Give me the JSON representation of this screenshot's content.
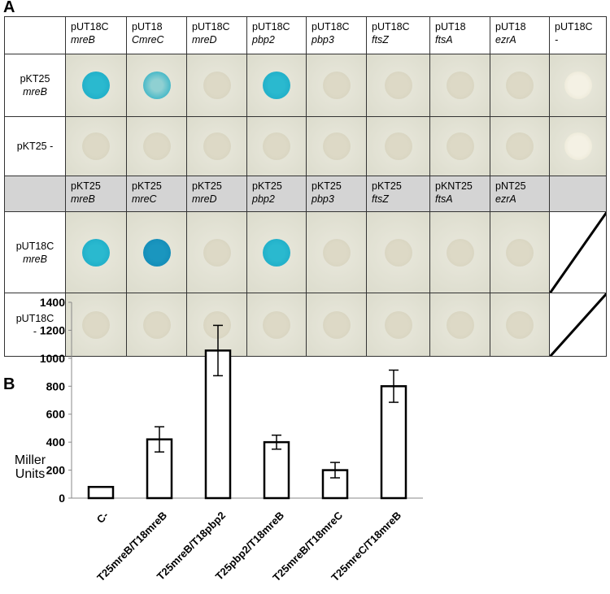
{
  "panel_a": {
    "letter": "A",
    "header_top": [
      {
        "line1": "pUT18C",
        "line2": "mreB"
      },
      {
        "line1": "pUT18",
        "line2": "CmreC"
      },
      {
        "line1": "pUT18C",
        "line2": "mreD"
      },
      {
        "line1": "pUT18C",
        "line2": "pbp2"
      },
      {
        "line1": "pUT18C",
        "line2": "pbp3"
      },
      {
        "line1": "pUT18C",
        "line2": "ftsZ"
      },
      {
        "line1": "pUT18",
        "line2": "ftsA"
      },
      {
        "line1": "pUT18",
        "line2": "ezrA"
      },
      {
        "line1": "pUT18C",
        "line2": "-"
      }
    ],
    "header_bottom": [
      {
        "line1": "pKT25",
        "line2": "mreB"
      },
      {
        "line1": "pKT25",
        "line2": "mreC"
      },
      {
        "line1": "pKT25",
        "line2": "mreD"
      },
      {
        "line1": "pKT25",
        "line2": "pbp2"
      },
      {
        "line1": "pKT25",
        "line2": "pbp3"
      },
      {
        "line1": "pKT25",
        "line2": "ftsZ"
      },
      {
        "line1": "pKNT25",
        "line2": "ftsA"
      },
      {
        "line1": "pNT25",
        "line2": "ezrA"
      }
    ],
    "row_labels": [
      {
        "line1": "pKT25",
        "line2": "mreB"
      },
      {
        "line1": "pKT25 -"
      },
      {
        "line1": "pUT18C",
        "line2": "mreB"
      },
      {
        "line1": "pUT18C",
        "line2": "-"
      }
    ]
  },
  "chart_data": {
    "type": "bar",
    "letter": "B",
    "ylabel": "Miller Units",
    "categories": [
      "C-",
      "T25mreB/T18mreB",
      "T25mreB/T18pbp2",
      "T25pbp2/T18mreB",
      "T25mreB/T18mreC",
      "T25mreC/T18mreB"
    ],
    "values": [
      80,
      420,
      1055,
      400,
      200,
      800
    ],
    "errors": [
      null,
      90,
      180,
      50,
      55,
      115
    ],
    "color": "#ffffff",
    "ylim": [
      0,
      1400
    ],
    "yticks": [
      0,
      200,
      400,
      600,
      800,
      1000,
      1200,
      1400
    ],
    "grid": false
  }
}
